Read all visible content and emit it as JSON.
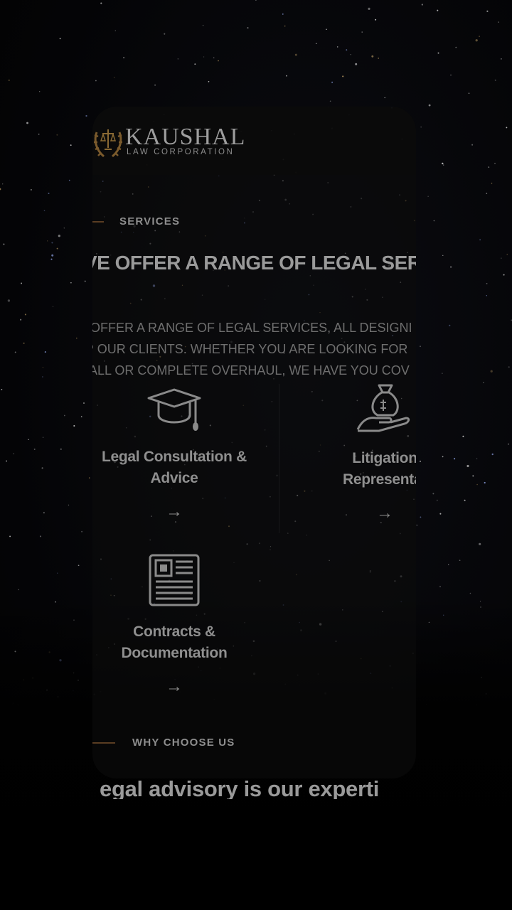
{
  "brand": {
    "name": "KAUSHAL",
    "tagline": "LAW CORPORATION",
    "accent_color": "#5a3d22",
    "emblem_icon": "scales-laurel-icon"
  },
  "services_section": {
    "eyebrow": "SERVICES",
    "heading": "VE OFFER A RANGE OF LEGAL SERV",
    "intro_lines": [
      "E OFFER A RANGE OF LEGAL SERVICES, ALL DESIGNI",
      "LP OUR CLIENTS. WHETHER YOU ARE LOOKING FOR",
      "MALL OR COMPLETE OVERHAUL, WE HAVE YOU COV"
    ],
    "items": [
      {
        "title_line1": "Legal Consultation &",
        "title_line2": "Advice",
        "icon": "graduation-cap-icon",
        "arrow": "→"
      },
      {
        "title_line1": "Litigation",
        "title_line2": "Representat",
        "icon": "money-bag-hand-icon",
        "arrow": "→"
      },
      {
        "title_line1": "Contracts &",
        "title_line2": "Documentation",
        "icon": "newspaper-icon",
        "arrow": "→"
      }
    ]
  },
  "why_section": {
    "eyebrow": "WHY CHOOSE US",
    "heading": "egal advisory is our experti"
  }
}
